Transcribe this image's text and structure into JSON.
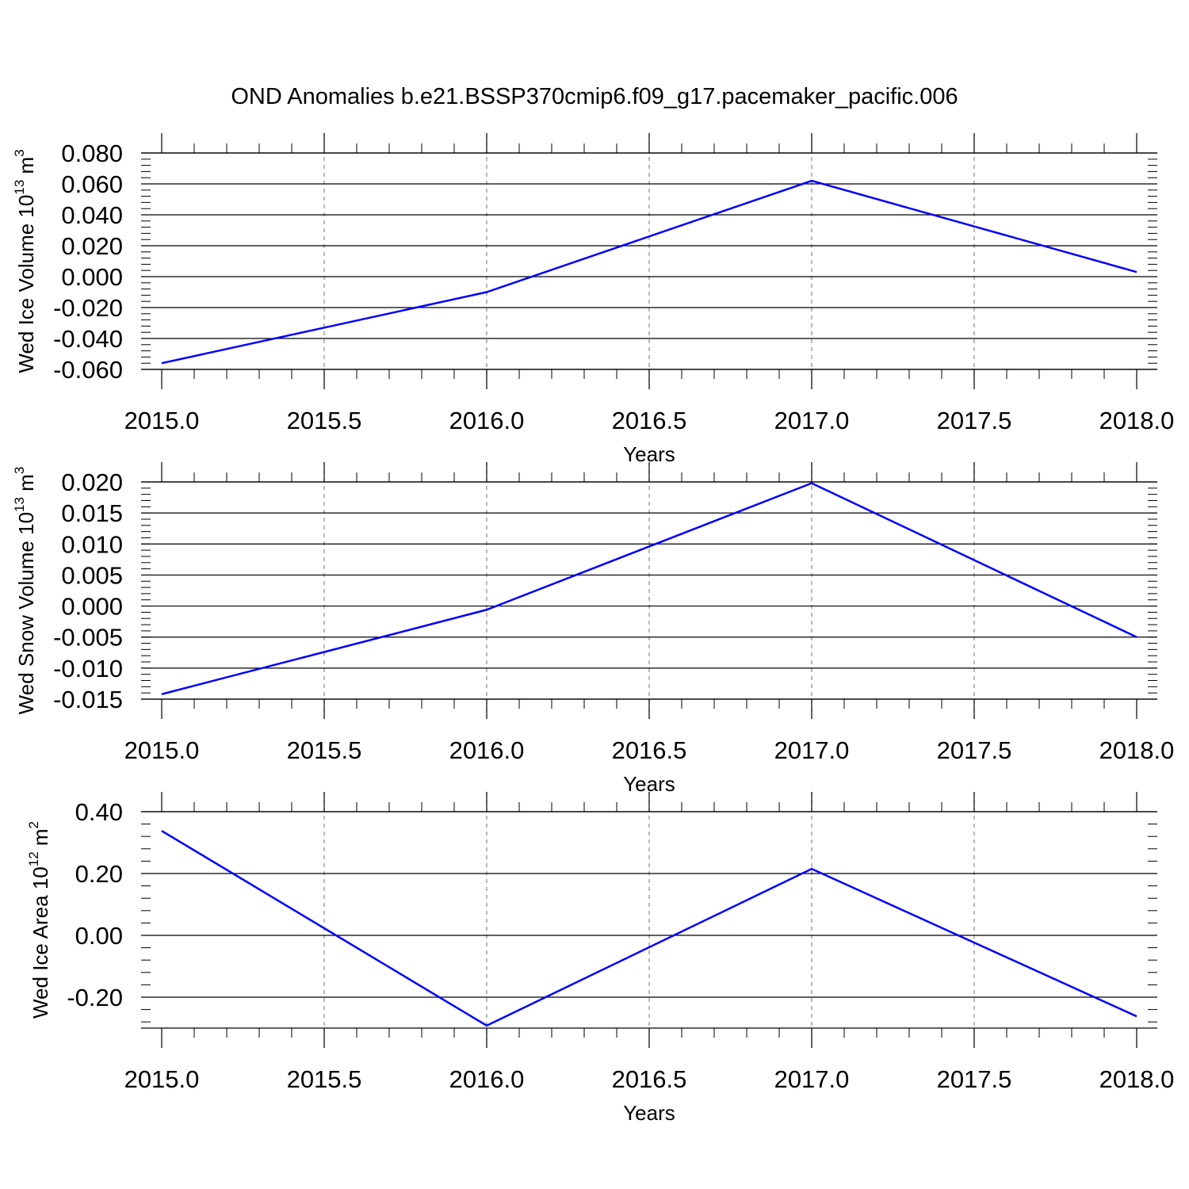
{
  "title": "OND Anomalies b.e21.BSSP370cmip6.f09_g17.pacemaker_pacific.006",
  "chart_data": [
    {
      "type": "line",
      "title": "OND Anomalies b.e21.BSSP370cmip6.f09_g17.pacemaker_pacific.006",
      "xlabel": "Years",
      "ylabel": {
        "text": "Wed Ice Volume 10",
        "exponent": "13",
        "unit": " m",
        "unit_exponent": "3"
      },
      "xlim": [
        2015.0,
        2018.0
      ],
      "ylim": [
        -0.06,
        0.08
      ],
      "xticks": [
        2015.0,
        2015.5,
        2016.0,
        2016.5,
        2017.0,
        2017.5,
        2018.0
      ],
      "xtick_labels": [
        "2015.0",
        "2015.5",
        "2016.0",
        "2016.5",
        "2017.0",
        "2017.5",
        "2018.0"
      ],
      "yticks": [
        -0.06,
        -0.04,
        -0.02,
        0.0,
        0.02,
        0.04,
        0.06,
        0.08
      ],
      "ytick_labels": [
        "-0.060",
        "-0.040",
        "-0.020",
        "0.000",
        "0.020",
        "0.040",
        "0.060",
        "0.080"
      ],
      "grid": "vertical dashed at x ticks",
      "color": "#0000ff",
      "x": [
        2015,
        2016,
        2017,
        2018
      ],
      "y": [
        -0.056,
        -0.01,
        0.062,
        0.003
      ]
    },
    {
      "type": "line",
      "xlabel": "Years",
      "ylabel": {
        "text": "Wed Snow Volume 10",
        "exponent": "13",
        "unit": " m",
        "unit_exponent": "3"
      },
      "xlim": [
        2015.0,
        2018.0
      ],
      "ylim": [
        -0.015,
        0.02
      ],
      "xticks": [
        2015.0,
        2015.5,
        2016.0,
        2016.5,
        2017.0,
        2017.5,
        2018.0
      ],
      "xtick_labels": [
        "2015.0",
        "2015.5",
        "2016.0",
        "2016.5",
        "2017.0",
        "2017.5",
        "2018.0"
      ],
      "yticks": [
        -0.015,
        -0.01,
        -0.005,
        0.0,
        0.005,
        0.01,
        0.015,
        0.02
      ],
      "ytick_labels": [
        "-0.015",
        "-0.010",
        "-0.005",
        "0.000",
        "0.005",
        "0.010",
        "0.015",
        "0.020"
      ],
      "grid": "vertical dashed at x ticks",
      "color": "#0000ff",
      "x": [
        2015,
        2016,
        2017,
        2018
      ],
      "y": [
        -0.0142,
        -0.0006,
        0.0198,
        -0.005
      ]
    },
    {
      "type": "line",
      "xlabel": "Years",
      "ylabel": {
        "text": "Wed Ice Area 10",
        "exponent": "12",
        "unit": " m",
        "unit_exponent": "2"
      },
      "xlim": [
        2015.0,
        2018.0
      ],
      "ylim": [
        -0.3,
        0.4
      ],
      "xticks": [
        2015.0,
        2015.5,
        2016.0,
        2016.5,
        2017.0,
        2017.5,
        2018.0
      ],
      "xtick_labels": [
        "2015.0",
        "2015.5",
        "2016.0",
        "2016.5",
        "2017.0",
        "2017.5",
        "2018.0"
      ],
      "yticks": [
        -0.2,
        0.0,
        0.2,
        0.4
      ],
      "ytick_labels": [
        "-0.20",
        "0.00",
        "0.20",
        "0.40"
      ],
      "grid": "vertical dashed at x ticks",
      "color": "#0000ff",
      "x": [
        2015,
        2016,
        2017,
        2018
      ],
      "y": [
        0.338,
        -0.292,
        0.215,
        -0.262
      ]
    }
  ]
}
